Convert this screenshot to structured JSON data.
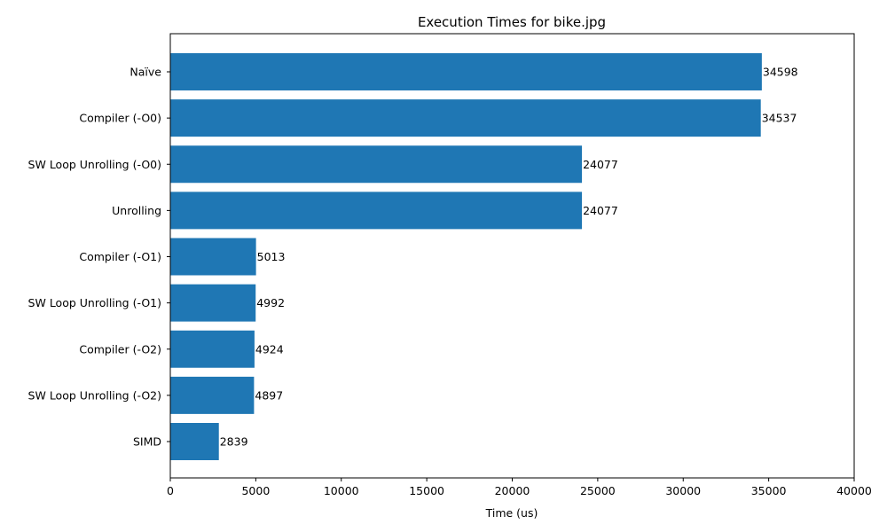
{
  "chart_data": {
    "type": "bar",
    "orientation": "horizontal",
    "title": "Execution Times for bike.jpg",
    "xlabel": "Time (us)",
    "ylabel": "",
    "xlim": [
      0,
      40000
    ],
    "xticks": [
      0,
      5000,
      10000,
      15000,
      20000,
      25000,
      30000,
      35000,
      40000
    ],
    "categories": [
      "Naïve",
      "Compiler (-O0)",
      "SW Loop Unrolling (-O0)",
      "Unrolling",
      "Compiler (-O1)",
      "SW Loop Unrolling (-O1)",
      "Compiler (-O2)",
      "SW Loop Unrolling (-O2)",
      "SIMD"
    ],
    "values": [
      34598,
      34537,
      24077,
      24077,
      5013,
      4992,
      4924,
      4897,
      2839
    ],
    "bar_color": "#1f77b4",
    "grid": false,
    "legend": false
  }
}
